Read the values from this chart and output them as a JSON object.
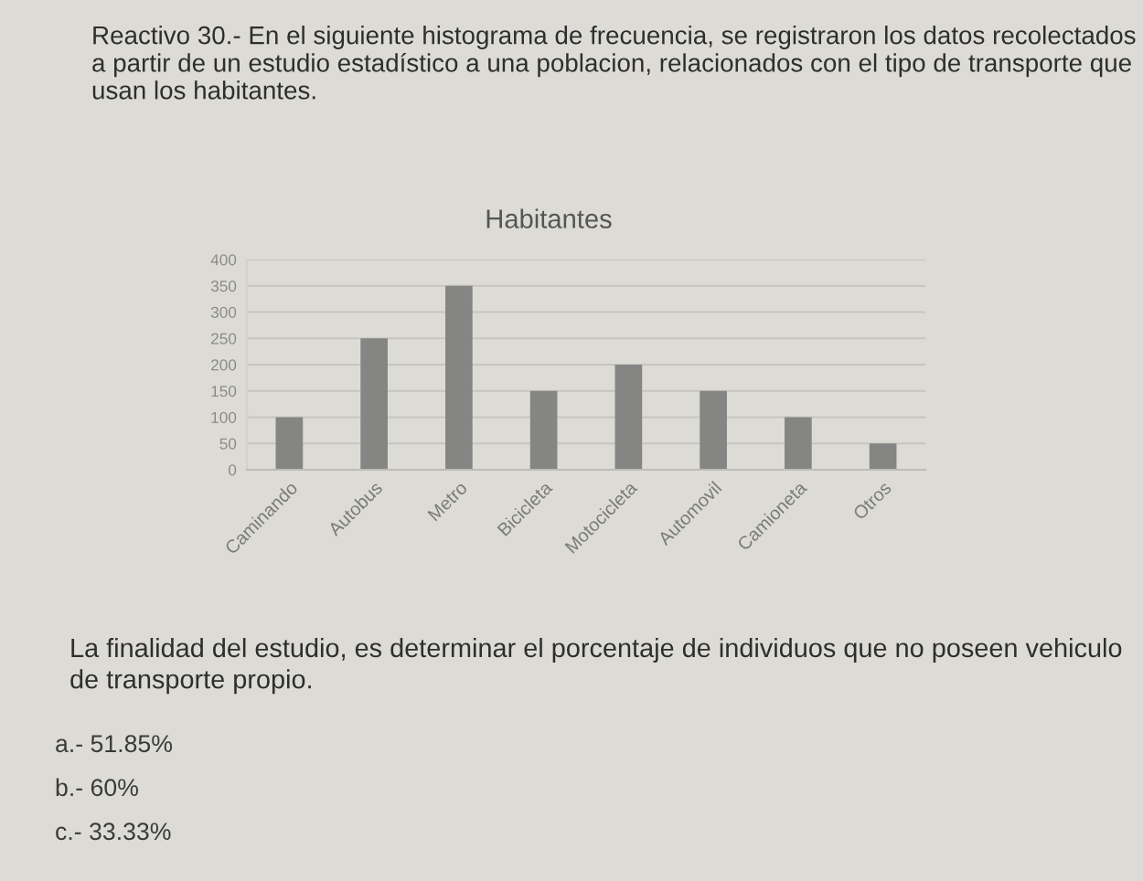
{
  "chart_data": {
    "type": "bar",
    "title": "Habitantes",
    "categories": [
      "Caminando",
      "Autobus",
      "Metro",
      "Bicicleta",
      "Motocicleta",
      "Automovil",
      "Camioneta",
      "Otros"
    ],
    "values": [
      100,
      250,
      350,
      150,
      200,
      150,
      100,
      50
    ],
    "color": "#858583",
    "ylim": [
      0,
      400
    ],
    "yticks": [
      0,
      50,
      100,
      150,
      200,
      250,
      300,
      350,
      400
    ],
    "grid": "y",
    "annotations": [
      "Reactivo 30.- En el siguiente histograma de frecuencia, se registraron los datos recolectados a partir de un estudio estadístico a una poblacion, relacionados con el tipo de transporte que usan los habitantes.",
      "La finalidad del estudio, es determinar el porcentaje de individuos que no poseen vehiculo de transporte propio.",
      "a.- 51.85%",
      "b.- 60%",
      "c.- 33.33%"
    ]
  }
}
